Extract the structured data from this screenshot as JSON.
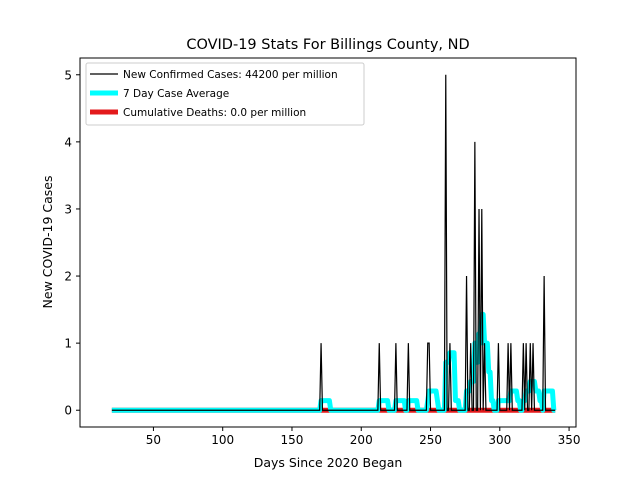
{
  "chart_data": {
    "type": "line",
    "title": "COVID-19 Stats For Billings County, ND",
    "xlabel": "Days Since 2020 Began",
    "ylabel": "New COVID-19 Cases",
    "xlim": [
      -3,
      355
    ],
    "ylim": [
      -0.25,
      5.25
    ],
    "xticks": [
      50,
      100,
      150,
      200,
      250,
      300,
      350
    ],
    "yticks": [
      0,
      1,
      2,
      3,
      4,
      5
    ],
    "grid": false,
    "legend_position": "top-left",
    "legend": [
      "New Confirmed Cases: 44200 per million",
      "7 Day Case Average",
      "Cumulative Deaths: 0.0 per million"
    ],
    "series": [
      {
        "name": "New Confirmed Cases: 44200 per million",
        "color": "#000000",
        "x_start": 20,
        "x_end": 340,
        "nonzero": {
          "171": 1,
          "213": 1,
          "225": 1,
          "234": 1,
          "248": 1,
          "249": 1,
          "261": 5,
          "264": 1,
          "276": 2,
          "279": 1,
          "282": 4,
          "285": 3,
          "287": 3,
          "289": 1,
          "299": 1,
          "306": 1,
          "308": 1,
          "317": 1,
          "319": 1,
          "322": 1,
          "324": 1,
          "332": 2
        }
      },
      {
        "name": "7 Day Case Average",
        "color": "#00ffff",
        "x_start": 20,
        "x_end": 340
      },
      {
        "name": "Cumulative Deaths: 0.0 per million",
        "color": "#e31a1c",
        "x_start": 20,
        "x_end": 340,
        "value": 0
      }
    ]
  }
}
